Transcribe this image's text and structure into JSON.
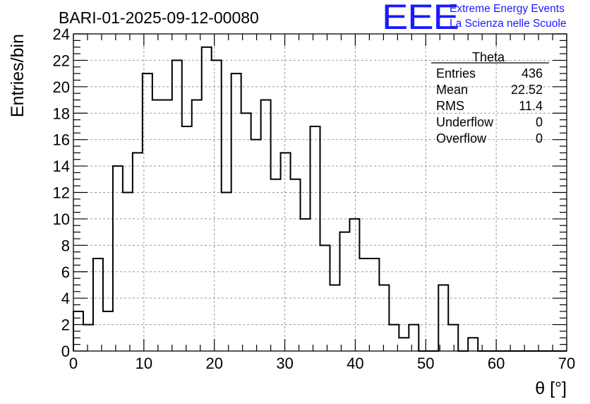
{
  "run_label": "BARI-01-2025-09-12-00080",
  "logo": {
    "mark": "EEE",
    "line1": "Extreme Energy Events",
    "line2": "La Scienza nelle Scuole",
    "color": "#1a1aff"
  },
  "stats_box": {
    "title": "Theta",
    "rows": [
      {
        "label": "Entries",
        "value": "436"
      },
      {
        "label": "Mean",
        "value": "22.52"
      },
      {
        "label": "RMS",
        "value": "11.4"
      },
      {
        "label": "Underflow",
        "value": "0"
      },
      {
        "label": "Overflow",
        "value": "0"
      }
    ]
  },
  "chart_data": {
    "type": "bar",
    "style": "step-histogram",
    "xlabel": "θ [°]",
    "ylabel": "Entries/bin",
    "xlim": [
      0,
      70
    ],
    "ylim": [
      0,
      24
    ],
    "x_ticks": [
      "0",
      "10",
      "20",
      "30",
      "40",
      "50",
      "60",
      "70"
    ],
    "y_ticks": [
      "0",
      "2",
      "4",
      "6",
      "8",
      "10",
      "12",
      "14",
      "16",
      "18",
      "20",
      "22",
      "24"
    ],
    "grid": true,
    "bin_width": 1.4,
    "bin_edges_start": 0,
    "values": [
      3,
      2,
      7,
      3,
      14,
      12,
      15,
      21,
      19,
      19,
      22,
      17,
      19,
      23,
      22,
      12,
      21,
      18,
      16,
      19,
      13,
      15,
      13,
      10,
      17,
      8,
      5,
      9,
      10,
      7,
      7,
      5,
      2,
      1,
      2,
      0,
      0,
      5,
      2,
      0,
      1,
      0,
      0,
      0,
      0,
      0,
      0,
      0,
      0,
      0
    ],
    "line_color": "#000000"
  }
}
